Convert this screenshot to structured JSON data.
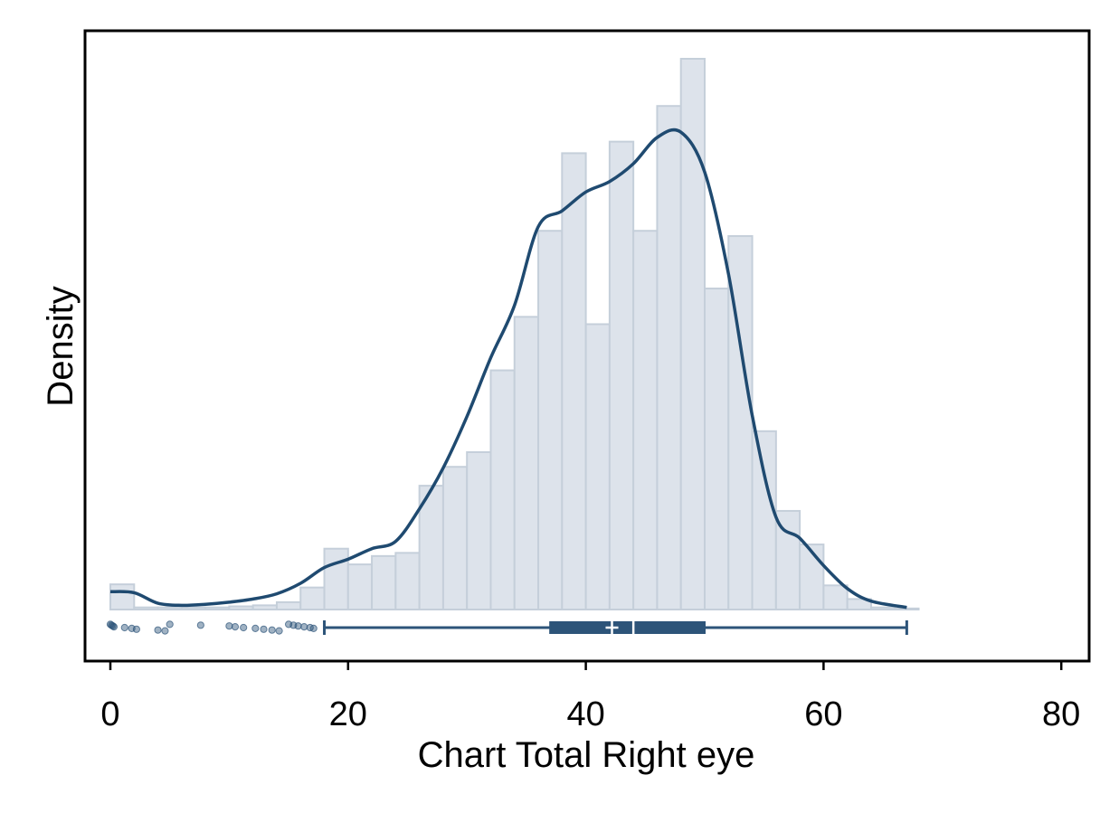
{
  "chart_data": {
    "type": "bar",
    "subtype": "histogram with kernel density, box plot and jittered outliers",
    "title": "",
    "xlabel": "Chart Total Right eye",
    "ylabel": "Density",
    "xlim": [
      -2,
      82
    ],
    "x_ticks": [
      "0",
      "20",
      "40",
      "60",
      "80"
    ],
    "y_ticks_shown": false,
    "colors": {
      "bar_fill": "#dde3eb",
      "bar_stroke": "#c5cfda",
      "curve": "#1f4a70",
      "box": "#2d5479",
      "outlier": "#2d5479",
      "frame": "#000000"
    },
    "histogram": {
      "bin_width": 2,
      "bins": [
        {
          "x0": 0,
          "height": 0.0024
        },
        {
          "x0": 2,
          "height": 0.0002
        },
        {
          "x0": 4,
          "height": 0.0002
        },
        {
          "x0": 6,
          "height": 0.0002
        },
        {
          "x0": 8,
          "height": 0.0002
        },
        {
          "x0": 10,
          "height": 0.0003
        },
        {
          "x0": 12,
          "height": 0.0004
        },
        {
          "x0": 14,
          "height": 0.0007
        },
        {
          "x0": 16,
          "height": 0.0021
        },
        {
          "x0": 18,
          "height": 0.0058
        },
        {
          "x0": 20,
          "height": 0.0043
        },
        {
          "x0": 22,
          "height": 0.0051
        },
        {
          "x0": 24,
          "height": 0.0054
        },
        {
          "x0": 26,
          "height": 0.0118
        },
        {
          "x0": 28,
          "height": 0.0136
        },
        {
          "x0": 30,
          "height": 0.015
        },
        {
          "x0": 32,
          "height": 0.0228
        },
        {
          "x0": 34,
          "height": 0.0279
        },
        {
          "x0": 36,
          "height": 0.0361
        },
        {
          "x0": 38,
          "height": 0.0435
        },
        {
          "x0": 40,
          "height": 0.0272
        },
        {
          "x0": 42,
          "height": 0.0446
        },
        {
          "x0": 44,
          "height": 0.0361
        },
        {
          "x0": 46,
          "height": 0.048
        },
        {
          "x0": 48,
          "height": 0.0525
        },
        {
          "x0": 50,
          "height": 0.0306
        },
        {
          "x0": 52,
          "height": 0.0356
        },
        {
          "x0": 54,
          "height": 0.017
        },
        {
          "x0": 56,
          "height": 0.0094
        },
        {
          "x0": 58,
          "height": 0.0062
        },
        {
          "x0": 60,
          "height": 0.0023
        },
        {
          "x0": 62,
          "height": 0.001
        },
        {
          "x0": 64,
          "height": 0.0002
        },
        {
          "x0": 66,
          "height": 0.0001
        }
      ]
    },
    "density_curve": {
      "x": [
        0,
        2,
        4,
        6,
        8,
        10,
        12,
        14,
        16,
        18,
        20,
        22,
        24,
        26,
        28,
        30,
        32,
        34,
        36,
        38,
        40,
        42,
        44,
        46,
        48,
        50,
        52,
        54,
        56,
        58,
        60,
        62,
        64,
        67
      ],
      "y": [
        0.0017,
        0.0016,
        0.0006,
        0.0004,
        0.0005,
        0.0007,
        0.001,
        0.0015,
        0.0025,
        0.004,
        0.0048,
        0.0058,
        0.0065,
        0.0096,
        0.0135,
        0.0184,
        0.024,
        0.029,
        0.0365,
        0.038,
        0.0398,
        0.0408,
        0.0425,
        0.045,
        0.0455,
        0.0417,
        0.032,
        0.0185,
        0.0088,
        0.0068,
        0.0042,
        0.002,
        0.0008,
        0.0002
      ]
    },
    "box_plot": {
      "whisker_low": 18,
      "q1": 37,
      "median": 44,
      "mean": 42.2,
      "q3": 50,
      "whisker_high": 67
    },
    "outliers": [
      0,
      0.1,
      0.2,
      0.3,
      1.2,
      1.8,
      2.2,
      4.0,
      4.6,
      5.0,
      7.6,
      10.0,
      10.5,
      11.2,
      12.2,
      12.9,
      13.6,
      14.2,
      15.0,
      15.4,
      15.8,
      16.3,
      16.8,
      17.1
    ]
  }
}
